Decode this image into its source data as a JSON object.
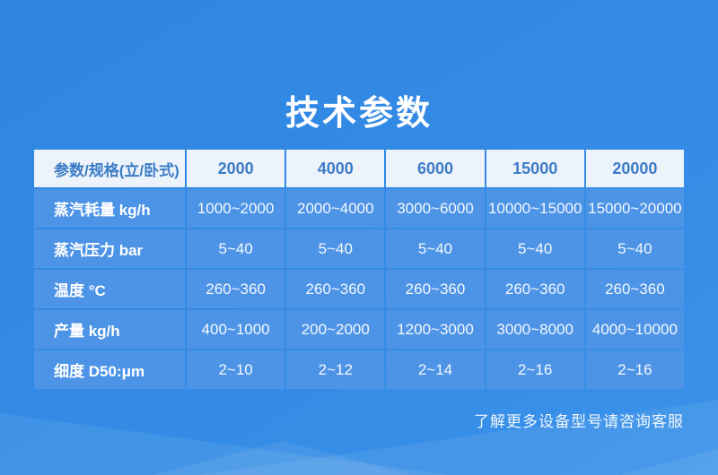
{
  "title": "技术参数",
  "footer_note": "了解更多设备型号请咨询客服",
  "table": {
    "header": [
      "参数/规格(立/卧式)",
      "2000",
      "4000",
      "6000",
      "15000",
      "20000"
    ],
    "rows": [
      {
        "label": "蒸汽耗量 kg/h",
        "values": [
          "1000~2000",
          "2000~4000",
          "3000~6000",
          "10000~15000",
          "15000~20000"
        ]
      },
      {
        "label": "蒸汽压力 bar",
        "values": [
          "5~40",
          "5~40",
          "5~40",
          "5~40",
          "5~40"
        ]
      },
      {
        "label": "温度 °C",
        "values": [
          "260~360",
          "260~360",
          "260~360",
          "260~360",
          "260~360"
        ]
      },
      {
        "label": "产量 kg/h",
        "values": [
          "400~1000",
          "200~2000",
          "1200~3000",
          "3000~8000",
          "4000~10000"
        ]
      },
      {
        "label": "细度 D50:μm",
        "values": [
          "2~10",
          "2~12",
          "2~14",
          "2~16",
          "2~16"
        ]
      }
    ]
  },
  "colors": {
    "background_top": "#2E86E2",
    "background_bottom": "#3B92E9",
    "header_cell_bg": "#EDF3FA",
    "header_text": "#3B7CC6",
    "cell_bg": "#4D94E7",
    "cell_text": "#FFFFFF",
    "title_text": "#FFFFFF"
  }
}
